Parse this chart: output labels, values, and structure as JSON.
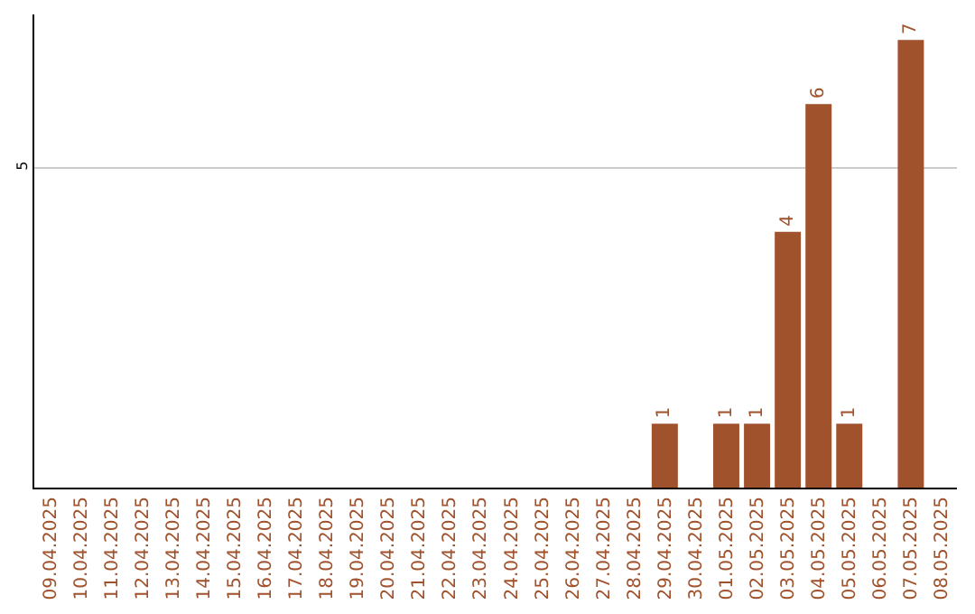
{
  "chart_data": {
    "type": "bar",
    "categories": [
      "09.04.2025",
      "10.04.2025",
      "11.04.2025",
      "12.04.2025",
      "13.04.2025",
      "14.04.2025",
      "15.04.2025",
      "16.04.2025",
      "17.04.2025",
      "18.04.2025",
      "19.04.2025",
      "20.04.2025",
      "21.04.2025",
      "22.04.2025",
      "23.04.2025",
      "24.04.2025",
      "25.04.2025",
      "26.04.2025",
      "27.04.2025",
      "28.04.2025",
      "29.04.2025",
      "30.04.2025",
      "01.05.2025",
      "02.05.2025",
      "03.05.2025",
      "04.05.2025",
      "05.05.2025",
      "06.05.2025",
      "07.05.2025",
      "08.05.2025"
    ],
    "values": [
      null,
      null,
      null,
      null,
      null,
      null,
      null,
      null,
      null,
      null,
      null,
      null,
      null,
      null,
      null,
      null,
      null,
      null,
      null,
      null,
      1,
      null,
      1,
      1,
      4,
      6,
      1,
      null,
      7,
      null
    ],
    "color": "#a0522d",
    "ylim": [
      0,
      7.4
    ],
    "yticks": [
      5
    ],
    "grid": "y",
    "legend": false,
    "data_labels": true
  }
}
